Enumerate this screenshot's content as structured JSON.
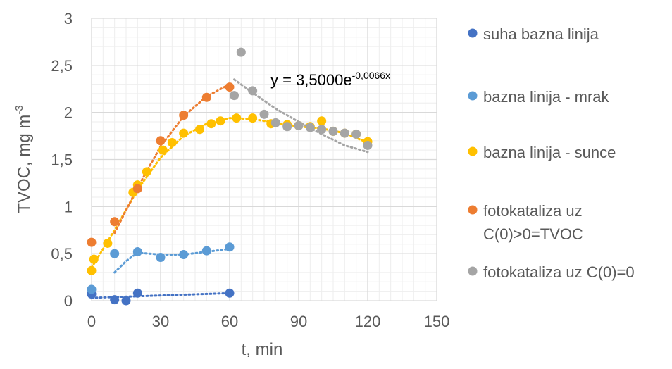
{
  "chart_data": {
    "type": "scatter",
    "xlabel": "t, min",
    "ylabel_main": "TVOC, mg m",
    "ylabel_sup": "-3",
    "xlim": [
      0,
      150
    ],
    "ylim": [
      0,
      3
    ],
    "xticks": [
      0,
      30,
      60,
      90,
      120,
      150
    ],
    "yticks": [
      0,
      0.5,
      1,
      1.5,
      2,
      2.5,
      3
    ],
    "xtick_labels": [
      "0",
      "30",
      "60",
      "90",
      "120",
      "150"
    ],
    "ytick_labels": [
      "0",
      "0,5",
      "1",
      "1,5",
      "2",
      "2,5",
      "3"
    ],
    "grid": true,
    "legend_position": "right",
    "annotation": {
      "base": "y = 3,5000e",
      "sup": "-0,0066x"
    },
    "series": [
      {
        "name": "suha bazna linija",
        "color": "#4472C4",
        "x": [
          0,
          10,
          15,
          20,
          60
        ],
        "y": [
          0.07,
          0.01,
          0.0,
          0.08,
          0.08
        ],
        "trend": {
          "x": [
            0,
            60
          ],
          "y": [
            0.03,
            0.08
          ]
        }
      },
      {
        "name": "bazna linija - mrak",
        "color": "#5B9BD5",
        "x": [
          0,
          10,
          20,
          30,
          40,
          50,
          60
        ],
        "y": [
          0.12,
          0.5,
          0.52,
          0.46,
          0.49,
          0.53,
          0.57
        ],
        "trend": {
          "x": [
            10,
            15,
            20,
            30,
            40,
            50,
            60
          ],
          "y": [
            0.3,
            0.42,
            0.51,
            0.49,
            0.49,
            0.52,
            0.55
          ]
        }
      },
      {
        "name": "bazna linija - sunce",
        "color": "#FFC000",
        "x": [
          0,
          1,
          7,
          18,
          20,
          24,
          31,
          35,
          40,
          47,
          52,
          56,
          63,
          70,
          78,
          85,
          90,
          95,
          100,
          105,
          110,
          115,
          120
        ],
        "y": [
          0.32,
          0.44,
          0.61,
          1.15,
          1.23,
          1.37,
          1.6,
          1.68,
          1.78,
          1.82,
          1.88,
          1.91,
          1.94,
          1.94,
          1.88,
          1.87,
          1.86,
          1.85,
          1.91,
          1.8,
          1.78,
          1.77,
          1.69
        ],
        "trend": {
          "x": [
            0,
            10,
            20,
            30,
            40,
            50,
            60,
            70,
            80,
            90,
            100,
            110,
            120
          ],
          "y": [
            0.35,
            0.75,
            1.18,
            1.52,
            1.75,
            1.88,
            1.94,
            1.93,
            1.89,
            1.85,
            1.83,
            1.78,
            1.68
          ]
        }
      },
      {
        "name": "fotokataliza uz C(0)>0=TVOC",
        "name_lines": [
          "fotokataliza uz",
          "C(0)>0=TVOC"
        ],
        "color": "#ED7D31",
        "x": [
          0,
          10,
          20,
          30,
          40,
          50,
          60
        ],
        "y": [
          0.62,
          0.84,
          1.19,
          1.7,
          1.97,
          2.16,
          2.27
        ],
        "trend": {
          "x": [
            10,
            20,
            30,
            40,
            50,
            60
          ],
          "y": [
            0.72,
            1.2,
            1.64,
            1.96,
            2.17,
            2.3
          ]
        }
      },
      {
        "name": "fotokataliza uz C(0)=0",
        "color": "#A5A5A5",
        "x": [
          62,
          65,
          70,
          75,
          80,
          85,
          90,
          95,
          100,
          105,
          110,
          115,
          120
        ],
        "y": [
          2.18,
          2.64,
          2.23,
          1.98,
          1.89,
          1.85,
          1.86,
          1.84,
          1.82,
          1.8,
          1.78,
          1.77,
          1.65
        ],
        "trend": {
          "x": [
            62,
            70,
            80,
            90,
            100,
            110,
            120
          ],
          "y": [
            2.35,
            2.21,
            2.04,
            1.9,
            1.77,
            1.65,
            1.58
          ]
        }
      }
    ]
  }
}
